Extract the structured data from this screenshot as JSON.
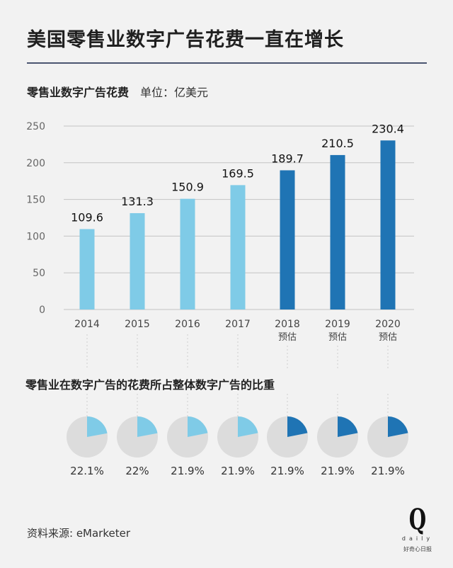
{
  "title": "美国零售业数字广告花费一直在增长",
  "subtitle": "零售业数字广告花费",
  "unit": "单位：亿美元",
  "section2_title": "零售业在数字广告的花费所占整体数字广告的比重",
  "source": "资料来源: eMarketer",
  "logo": {
    "letter": "Q",
    "word": "daily",
    "cn": "好奇心日报"
  },
  "colors": {
    "actual": "#7fcbe7",
    "forecast": "#1f74b4",
    "pie_bg": "#dcdcdc",
    "grid": "#c4c4c4"
  },
  "chart_data": [
    {
      "type": "bar",
      "title": "零售业数字广告花费",
      "ylabel": "单位：亿美元",
      "categories": [
        "2014",
        "2015",
        "2016",
        "2017",
        "2018",
        "2019",
        "2020"
      ],
      "sublabels": [
        "",
        "",
        "",
        "",
        "预估",
        "预估",
        "预估"
      ],
      "values": [
        109.6,
        131.3,
        150.9,
        169.5,
        189.7,
        210.5,
        230.4
      ],
      "value_labels": [
        "109.6",
        "131.3",
        "150.9",
        "169.5",
        "189.7",
        "210.5",
        "230.4"
      ],
      "forecast": [
        false,
        false,
        false,
        false,
        true,
        true,
        true
      ],
      "yticks": [
        0,
        50,
        100,
        150,
        200,
        250
      ],
      "ylim": [
        0,
        250
      ],
      "grid": true
    },
    {
      "type": "pie",
      "title": "零售业在数字广告的花费所占整体数字广告的比重",
      "categories": [
        "2014",
        "2015",
        "2016",
        "2017",
        "2018",
        "2019",
        "2020"
      ],
      "values": [
        22.1,
        22,
        21.9,
        21.9,
        21.9,
        21.9,
        21.9
      ],
      "labels": [
        "22.1%",
        "22%",
        "21.9%",
        "21.9%",
        "21.9%",
        "21.9%",
        "21.9%"
      ],
      "forecast": [
        false,
        false,
        false,
        false,
        true,
        true,
        true
      ]
    }
  ]
}
